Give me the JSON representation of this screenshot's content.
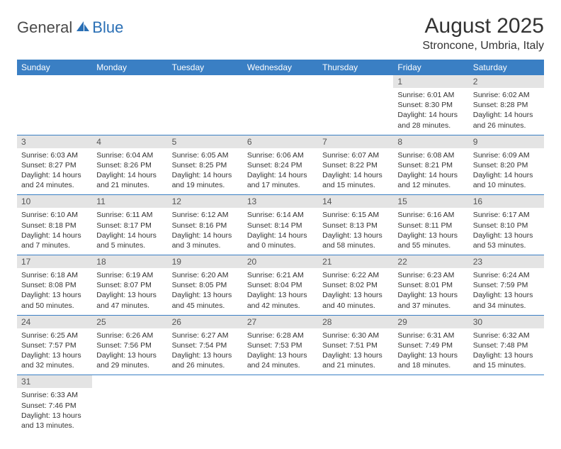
{
  "logo": {
    "general": "General",
    "blue": "Blue"
  },
  "title": "August 2025",
  "location": "Stroncone, Umbria, Italy",
  "colors": {
    "header_bg": "#3a7fc4",
    "header_text": "#ffffff",
    "daynum_bg": "#e4e4e4",
    "rule": "#3a7fc4",
    "logo_gray": "#4a4a4a",
    "logo_blue": "#2a6fb5"
  },
  "day_labels": [
    "Sunday",
    "Monday",
    "Tuesday",
    "Wednesday",
    "Thursday",
    "Friday",
    "Saturday"
  ],
  "weeks": [
    [
      null,
      null,
      null,
      null,
      null,
      {
        "n": "1",
        "sr": "Sunrise: 6:01 AM",
        "ss": "Sunset: 8:30 PM",
        "dl1": "Daylight: 14 hours",
        "dl2": "and 28 minutes."
      },
      {
        "n": "2",
        "sr": "Sunrise: 6:02 AM",
        "ss": "Sunset: 8:28 PM",
        "dl1": "Daylight: 14 hours",
        "dl2": "and 26 minutes."
      }
    ],
    [
      {
        "n": "3",
        "sr": "Sunrise: 6:03 AM",
        "ss": "Sunset: 8:27 PM",
        "dl1": "Daylight: 14 hours",
        "dl2": "and 24 minutes."
      },
      {
        "n": "4",
        "sr": "Sunrise: 6:04 AM",
        "ss": "Sunset: 8:26 PM",
        "dl1": "Daylight: 14 hours",
        "dl2": "and 21 minutes."
      },
      {
        "n": "5",
        "sr": "Sunrise: 6:05 AM",
        "ss": "Sunset: 8:25 PM",
        "dl1": "Daylight: 14 hours",
        "dl2": "and 19 minutes."
      },
      {
        "n": "6",
        "sr": "Sunrise: 6:06 AM",
        "ss": "Sunset: 8:24 PM",
        "dl1": "Daylight: 14 hours",
        "dl2": "and 17 minutes."
      },
      {
        "n": "7",
        "sr": "Sunrise: 6:07 AM",
        "ss": "Sunset: 8:22 PM",
        "dl1": "Daylight: 14 hours",
        "dl2": "and 15 minutes."
      },
      {
        "n": "8",
        "sr": "Sunrise: 6:08 AM",
        "ss": "Sunset: 8:21 PM",
        "dl1": "Daylight: 14 hours",
        "dl2": "and 12 minutes."
      },
      {
        "n": "9",
        "sr": "Sunrise: 6:09 AM",
        "ss": "Sunset: 8:20 PM",
        "dl1": "Daylight: 14 hours",
        "dl2": "and 10 minutes."
      }
    ],
    [
      {
        "n": "10",
        "sr": "Sunrise: 6:10 AM",
        "ss": "Sunset: 8:18 PM",
        "dl1": "Daylight: 14 hours",
        "dl2": "and 7 minutes."
      },
      {
        "n": "11",
        "sr": "Sunrise: 6:11 AM",
        "ss": "Sunset: 8:17 PM",
        "dl1": "Daylight: 14 hours",
        "dl2": "and 5 minutes."
      },
      {
        "n": "12",
        "sr": "Sunrise: 6:12 AM",
        "ss": "Sunset: 8:16 PM",
        "dl1": "Daylight: 14 hours",
        "dl2": "and 3 minutes."
      },
      {
        "n": "13",
        "sr": "Sunrise: 6:14 AM",
        "ss": "Sunset: 8:14 PM",
        "dl1": "Daylight: 14 hours",
        "dl2": "and 0 minutes."
      },
      {
        "n": "14",
        "sr": "Sunrise: 6:15 AM",
        "ss": "Sunset: 8:13 PM",
        "dl1": "Daylight: 13 hours",
        "dl2": "and 58 minutes."
      },
      {
        "n": "15",
        "sr": "Sunrise: 6:16 AM",
        "ss": "Sunset: 8:11 PM",
        "dl1": "Daylight: 13 hours",
        "dl2": "and 55 minutes."
      },
      {
        "n": "16",
        "sr": "Sunrise: 6:17 AM",
        "ss": "Sunset: 8:10 PM",
        "dl1": "Daylight: 13 hours",
        "dl2": "and 53 minutes."
      }
    ],
    [
      {
        "n": "17",
        "sr": "Sunrise: 6:18 AM",
        "ss": "Sunset: 8:08 PM",
        "dl1": "Daylight: 13 hours",
        "dl2": "and 50 minutes."
      },
      {
        "n": "18",
        "sr": "Sunrise: 6:19 AM",
        "ss": "Sunset: 8:07 PM",
        "dl1": "Daylight: 13 hours",
        "dl2": "and 47 minutes."
      },
      {
        "n": "19",
        "sr": "Sunrise: 6:20 AM",
        "ss": "Sunset: 8:05 PM",
        "dl1": "Daylight: 13 hours",
        "dl2": "and 45 minutes."
      },
      {
        "n": "20",
        "sr": "Sunrise: 6:21 AM",
        "ss": "Sunset: 8:04 PM",
        "dl1": "Daylight: 13 hours",
        "dl2": "and 42 minutes."
      },
      {
        "n": "21",
        "sr": "Sunrise: 6:22 AM",
        "ss": "Sunset: 8:02 PM",
        "dl1": "Daylight: 13 hours",
        "dl2": "and 40 minutes."
      },
      {
        "n": "22",
        "sr": "Sunrise: 6:23 AM",
        "ss": "Sunset: 8:01 PM",
        "dl1": "Daylight: 13 hours",
        "dl2": "and 37 minutes."
      },
      {
        "n": "23",
        "sr": "Sunrise: 6:24 AM",
        "ss": "Sunset: 7:59 PM",
        "dl1": "Daylight: 13 hours",
        "dl2": "and 34 minutes."
      }
    ],
    [
      {
        "n": "24",
        "sr": "Sunrise: 6:25 AM",
        "ss": "Sunset: 7:57 PM",
        "dl1": "Daylight: 13 hours",
        "dl2": "and 32 minutes."
      },
      {
        "n": "25",
        "sr": "Sunrise: 6:26 AM",
        "ss": "Sunset: 7:56 PM",
        "dl1": "Daylight: 13 hours",
        "dl2": "and 29 minutes."
      },
      {
        "n": "26",
        "sr": "Sunrise: 6:27 AM",
        "ss": "Sunset: 7:54 PM",
        "dl1": "Daylight: 13 hours",
        "dl2": "and 26 minutes."
      },
      {
        "n": "27",
        "sr": "Sunrise: 6:28 AM",
        "ss": "Sunset: 7:53 PM",
        "dl1": "Daylight: 13 hours",
        "dl2": "and 24 minutes."
      },
      {
        "n": "28",
        "sr": "Sunrise: 6:30 AM",
        "ss": "Sunset: 7:51 PM",
        "dl1": "Daylight: 13 hours",
        "dl2": "and 21 minutes."
      },
      {
        "n": "29",
        "sr": "Sunrise: 6:31 AM",
        "ss": "Sunset: 7:49 PM",
        "dl1": "Daylight: 13 hours",
        "dl2": "and 18 minutes."
      },
      {
        "n": "30",
        "sr": "Sunrise: 6:32 AM",
        "ss": "Sunset: 7:48 PM",
        "dl1": "Daylight: 13 hours",
        "dl2": "and 15 minutes."
      }
    ],
    [
      {
        "n": "31",
        "sr": "Sunrise: 6:33 AM",
        "ss": "Sunset: 7:46 PM",
        "dl1": "Daylight: 13 hours",
        "dl2": "and 13 minutes."
      },
      null,
      null,
      null,
      null,
      null,
      null
    ]
  ]
}
